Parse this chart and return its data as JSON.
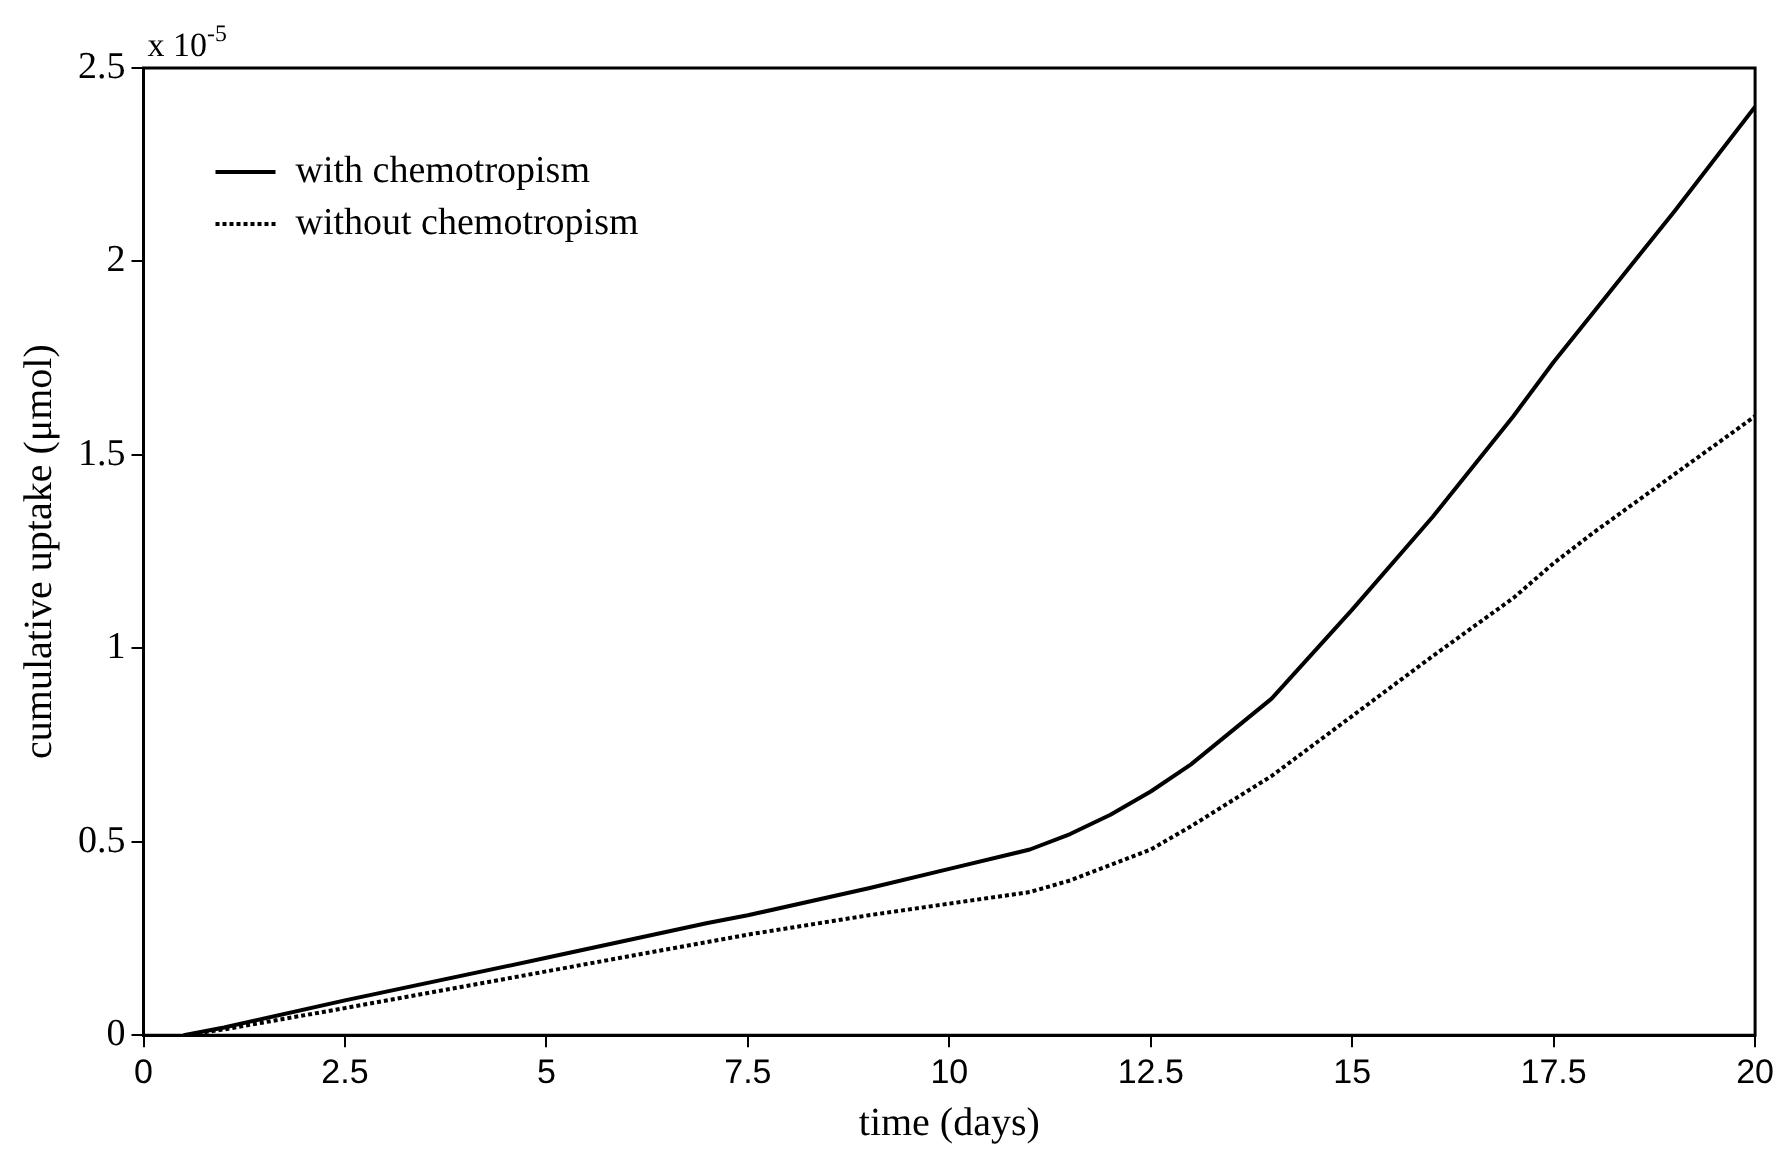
{
  "chart_data": {
    "type": "line",
    "xlabel": "time (days)",
    "ylabel": "cumulative uptake (μmol)",
    "annotations": [
      "x 10$^{-5}$"
    ],
    "xlim": [
      0,
      20
    ],
    "xticks": [
      0,
      2.5,
      5,
      7.5,
      10,
      12.5,
      15,
      17.5,
      20
    ],
    "ylim": [
      0,
      2.5
    ],
    "yticks": [
      0,
      0.5,
      1,
      1.5,
      2,
      2.5
    ],
    "grid": false,
    "legend": "top left",
    "marker": "none",
    "series": [
      {
        "name": "with chemotropism",
        "color": "#000000",
        "line_style": "solid",
        "x": [
          0.5,
          1,
          2.5,
          5,
          7,
          7.5,
          9,
          10,
          11,
          11.5,
          12,
          12.5,
          13,
          14,
          15,
          16,
          17,
          17.5,
          18,
          19,
          20
        ],
        "values": [
          0,
          0.02,
          0.09,
          0.2,
          0.29,
          0.31,
          0.38,
          0.43,
          0.48,
          0.52,
          0.57,
          0.63,
          0.7,
          0.87,
          1.1,
          1.34,
          1.6,
          1.74,
          1.87,
          2.13,
          2.4
        ]
      },
      {
        "name": "without chemotropism",
        "color": "#000000",
        "line_style": "dotted",
        "x": [
          0.5,
          1,
          2.5,
          5,
          7.5,
          9,
          10,
          11,
          11.5,
          12,
          12.5,
          13,
          14,
          15,
          16,
          17,
          17.5,
          18,
          19,
          20
        ],
        "values": [
          0,
          0.015,
          0.07,
          0.165,
          0.26,
          0.31,
          0.34,
          0.37,
          0.4,
          0.44,
          0.48,
          0.54,
          0.67,
          0.825,
          0.98,
          1.13,
          1.22,
          1.3,
          1.45,
          1.6
        ]
      }
    ]
  }
}
